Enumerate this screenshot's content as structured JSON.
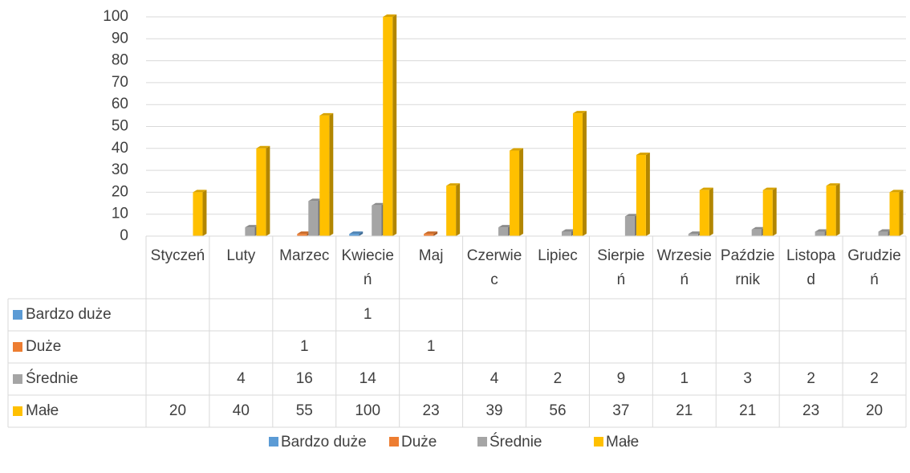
{
  "chart_data": {
    "type": "bar3d",
    "categories": [
      "Styczeń",
      "Luty",
      "Marzec",
      "Kwiecień",
      "Maj",
      "Czerwiec",
      "Lipiec",
      "Sierpień",
      "Wrzesień",
      "Październik",
      "Listopad",
      "Grudzień"
    ],
    "series": [
      {
        "name": "Bardzo duże",
        "color": "#5b9bd5",
        "values": [
          null,
          null,
          null,
          1,
          null,
          null,
          null,
          null,
          null,
          null,
          null,
          null
        ]
      },
      {
        "name": "Duże",
        "color": "#ed7d31",
        "values": [
          null,
          null,
          1,
          null,
          1,
          null,
          null,
          null,
          null,
          null,
          null,
          null
        ]
      },
      {
        "name": "Średnie",
        "color": "#a5a5a5",
        "values": [
          null,
          4,
          16,
          14,
          null,
          4,
          2,
          9,
          1,
          3,
          2,
          2
        ]
      },
      {
        "name": "Małe",
        "color": "#ffc000",
        "values": [
          20,
          40,
          55,
          100,
          23,
          39,
          56,
          37,
          21,
          21,
          23,
          20
        ]
      }
    ],
    "ylim": [
      0,
      100
    ],
    "yticks": [
      0,
      10,
      20,
      30,
      40,
      50,
      60,
      70,
      80,
      90,
      100
    ],
    "grid": true,
    "legend": "bottom",
    "data_table": true
  }
}
